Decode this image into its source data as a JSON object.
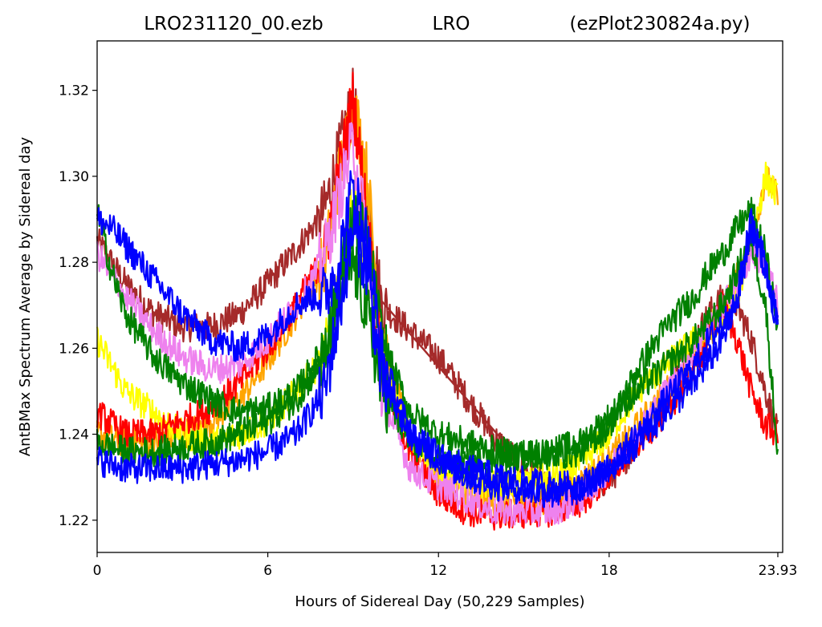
{
  "chart_data": {
    "type": "line",
    "title_left": "LRO231120_00.ezb",
    "title_center": "LRO",
    "title_right": "(ezPlot230824a.py)",
    "xlabel": "Hours of Sidereal Day  (50,229 Samples)",
    "ylabel": "AntBMax Spectrum Average by Sidereal day",
    "xlim": [
      0,
      24.1
    ],
    "ylim": [
      1.2125,
      1.3315
    ],
    "xticks": [
      0,
      6,
      12,
      18,
      23.93
    ],
    "xtick_labels": [
      "0",
      "6",
      "12",
      "18",
      "23.93"
    ],
    "yticks": [
      1.22,
      1.24,
      1.26,
      1.28,
      1.3,
      1.32
    ],
    "ytick_labels": [
      "1.22",
      "1.24",
      "1.26",
      "1.28",
      "1.30",
      "1.32"
    ],
    "grid": false,
    "legend": "none",
    "series_note_colors": [
      "#e53935",
      "#ff9800",
      "#ffff00",
      "#008000",
      "#0000ff",
      "#ee82ee",
      "#a52a2a"
    ],
    "series": [
      {
        "color": "#a52a2a",
        "x": [
          0,
          1,
          2,
          3,
          4,
          5,
          6,
          7,
          8,
          8.5,
          9,
          9.5,
          10,
          12,
          14,
          16,
          18,
          19,
          20,
          21,
          21.5,
          22,
          22.5,
          23,
          23.5,
          23.93
        ],
        "y": [
          1.285,
          1.275,
          1.268,
          1.265,
          1.265,
          1.268,
          1.275,
          1.283,
          1.292,
          1.305,
          1.318,
          1.296,
          1.27,
          1.258,
          1.239,
          1.226,
          1.229,
          1.238,
          1.25,
          1.262,
          1.268,
          1.272,
          1.27,
          1.262,
          1.25,
          1.24
        ]
      },
      {
        "color": "#ffa500",
        "x": [
          0,
          1,
          2,
          3,
          4,
          5,
          6,
          7,
          8,
          8.5,
          9,
          9.5,
          10,
          11,
          12,
          13,
          14,
          16,
          17,
          18,
          19,
          20,
          21,
          22,
          23,
          23.5,
          23.93
        ],
        "y": [
          1.24,
          1.238,
          1.238,
          1.24,
          1.243,
          1.248,
          1.257,
          1.268,
          1.28,
          1.3,
          1.318,
          1.3,
          1.262,
          1.24,
          1.23,
          1.226,
          1.224,
          1.225,
          1.229,
          1.234,
          1.242,
          1.25,
          1.258,
          1.268,
          1.285,
          1.3,
          1.295
        ]
      },
      {
        "color": "#ffff00",
        "x": [
          0,
          1,
          2,
          3,
          4,
          5,
          6,
          7,
          8,
          8.5,
          9,
          9.5,
          10,
          11,
          12,
          13,
          14,
          16,
          17,
          18,
          19,
          20,
          21,
          22,
          22.5,
          23,
          23.5,
          23.93
        ],
        "y": [
          1.262,
          1.25,
          1.245,
          1.24,
          1.238,
          1.24,
          1.243,
          1.25,
          1.258,
          1.272,
          1.295,
          1.282,
          1.258,
          1.238,
          1.232,
          1.229,
          1.228,
          1.23,
          1.233,
          1.24,
          1.25,
          1.256,
          1.262,
          1.268,
          1.272,
          1.285,
          1.3,
          1.295
        ]
      },
      {
        "color": "#ff0000",
        "x": [
          0,
          1,
          2,
          3,
          4,
          5,
          6,
          7,
          8,
          8.5,
          9,
          9.5,
          10,
          11,
          12,
          13,
          14,
          16,
          17,
          18,
          19,
          20,
          21,
          21.5,
          22,
          22.5,
          23,
          23.5,
          23.93
        ],
        "y": [
          1.245,
          1.24,
          1.24,
          1.243,
          1.246,
          1.252,
          1.26,
          1.27,
          1.282,
          1.3,
          1.318,
          1.29,
          1.255,
          1.235,
          1.226,
          1.222,
          1.221,
          1.222,
          1.224,
          1.23,
          1.238,
          1.245,
          1.255,
          1.262,
          1.27,
          1.262,
          1.25,
          1.242,
          1.24
        ]
      },
      {
        "color": "#ee82ee",
        "x": [
          0,
          1,
          2,
          3,
          4,
          5,
          6,
          7,
          7.5,
          8,
          8.5,
          9,
          9.5,
          10,
          11,
          12,
          13,
          14,
          16,
          17,
          18,
          19,
          20,
          21,
          22,
          22.5,
          23,
          23.5,
          23.93
        ],
        "y": [
          1.282,
          1.272,
          1.264,
          1.258,
          1.255,
          1.256,
          1.262,
          1.27,
          1.275,
          1.282,
          1.295,
          1.308,
          1.285,
          1.25,
          1.232,
          1.228,
          1.225,
          1.222,
          1.222,
          1.225,
          1.232,
          1.24,
          1.25,
          1.26,
          1.27,
          1.275,
          1.282,
          1.28,
          1.27
        ]
      },
      {
        "color": "#008000",
        "x": [
          0,
          0.5,
          1,
          2,
          3,
          4,
          5,
          6,
          7,
          8,
          8.5,
          9,
          9.5,
          10,
          11,
          12,
          14,
          16,
          17,
          18,
          19,
          20,
          21,
          21.5,
          22,
          22.5,
          23,
          23.5,
          23.93
        ],
        "y": [
          1.292,
          1.278,
          1.268,
          1.258,
          1.252,
          1.248,
          1.245,
          1.246,
          1.25,
          1.26,
          1.275,
          1.29,
          1.285,
          1.262,
          1.245,
          1.24,
          1.236,
          1.235,
          1.236,
          1.242,
          1.255,
          1.265,
          1.272,
          1.278,
          1.282,
          1.288,
          1.292,
          1.282,
          1.265
        ]
      },
      {
        "color": "#008000",
        "x": [
          0,
          1,
          2,
          3,
          4,
          5,
          6,
          7,
          8,
          8.5,
          9,
          9.5,
          10,
          11,
          12,
          13,
          14,
          16,
          17,
          18,
          19,
          20,
          21,
          22,
          22.5,
          23,
          23.5,
          23.93
        ],
        "y": [
          1.238,
          1.236,
          1.236,
          1.237,
          1.238,
          1.24,
          1.243,
          1.248,
          1.258,
          1.272,
          1.28,
          1.268,
          1.25,
          1.238,
          1.234,
          1.233,
          1.234,
          1.236,
          1.238,
          1.244,
          1.25,
          1.256,
          1.262,
          1.27,
          1.278,
          1.285,
          1.27,
          1.235
        ]
      },
      {
        "color": "#0000ff",
        "x": [
          0,
          0.5,
          1,
          2,
          3,
          4,
          5,
          6,
          7,
          7.5,
          8,
          8.5,
          9,
          9.5,
          10,
          11,
          12,
          13,
          14,
          16,
          17,
          18,
          19,
          20,
          21,
          21.5,
          22,
          22.5,
          23,
          23.5,
          23.93
        ],
        "y": [
          1.29,
          1.288,
          1.284,
          1.276,
          1.268,
          1.262,
          1.26,
          1.263,
          1.27,
          1.272,
          1.272,
          1.28,
          1.298,
          1.285,
          1.258,
          1.24,
          1.234,
          1.23,
          1.228,
          1.226,
          1.227,
          1.232,
          1.24,
          1.248,
          1.256,
          1.262,
          1.266,
          1.27,
          1.288,
          1.278,
          1.265
        ]
      },
      {
        "color": "#0000ff",
        "x": [
          0,
          1,
          2,
          3,
          4,
          5,
          6,
          7,
          8,
          8.5,
          9,
          9.5,
          10,
          11,
          12,
          13,
          14,
          16,
          17,
          18,
          19,
          20,
          21,
          22,
          22.5,
          23,
          23.5,
          23.93
        ],
        "y": [
          1.234,
          1.232,
          1.232,
          1.232,
          1.233,
          1.234,
          1.236,
          1.24,
          1.25,
          1.268,
          1.288,
          1.278,
          1.252,
          1.24,
          1.235,
          1.232,
          1.23,
          1.228,
          1.228,
          1.232,
          1.238,
          1.245,
          1.252,
          1.262,
          1.272,
          1.29,
          1.28,
          1.265
        ]
      }
    ],
    "straight_segment": {
      "color": "#a52a2a",
      "x": [
        10,
        14.2
      ],
      "y": [
        1.271,
        1.239
      ]
    }
  }
}
